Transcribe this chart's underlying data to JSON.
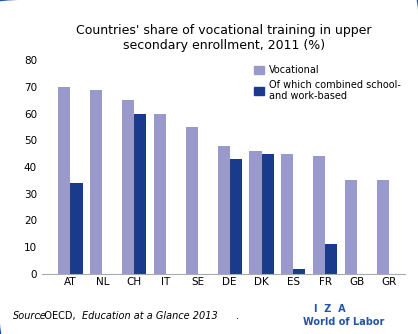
{
  "title": "Countries' share of vocational training in upper\nsecondary enrollment, 2011 (%)",
  "categories": [
    "AT",
    "NL",
    "CH",
    "IT",
    "SE",
    "DE",
    "DK",
    "ES",
    "FR",
    "GB",
    "GR"
  ],
  "vocational": [
    70,
    69,
    65,
    60,
    55,
    48,
    46,
    45,
    44,
    35,
    35
  ],
  "combined": [
    34,
    0,
    60,
    0,
    0,
    43,
    45,
    2,
    11,
    0,
    0
  ],
  "combined_present": [
    true,
    false,
    true,
    false,
    false,
    true,
    true,
    true,
    true,
    false,
    false
  ],
  "color_vocational": "#9999cc",
  "color_combined": "#1a3a8c",
  "ylim": [
    0,
    80
  ],
  "yticks": [
    0,
    10,
    20,
    30,
    40,
    50,
    60,
    70,
    80
  ],
  "legend_vocational": "Vocational",
  "legend_combined": "Of which combined school-\nand work-based",
  "source_normal": "Source",
  "source_colon": ": OECD, ",
  "source_italic": "Education at a Glance 2013",
  "source_end": ".",
  "iza_text": "I  Z  A",
  "world_of_labor": "World of Labor",
  "background_color": "#ffffff",
  "border_color": "#2255aa"
}
